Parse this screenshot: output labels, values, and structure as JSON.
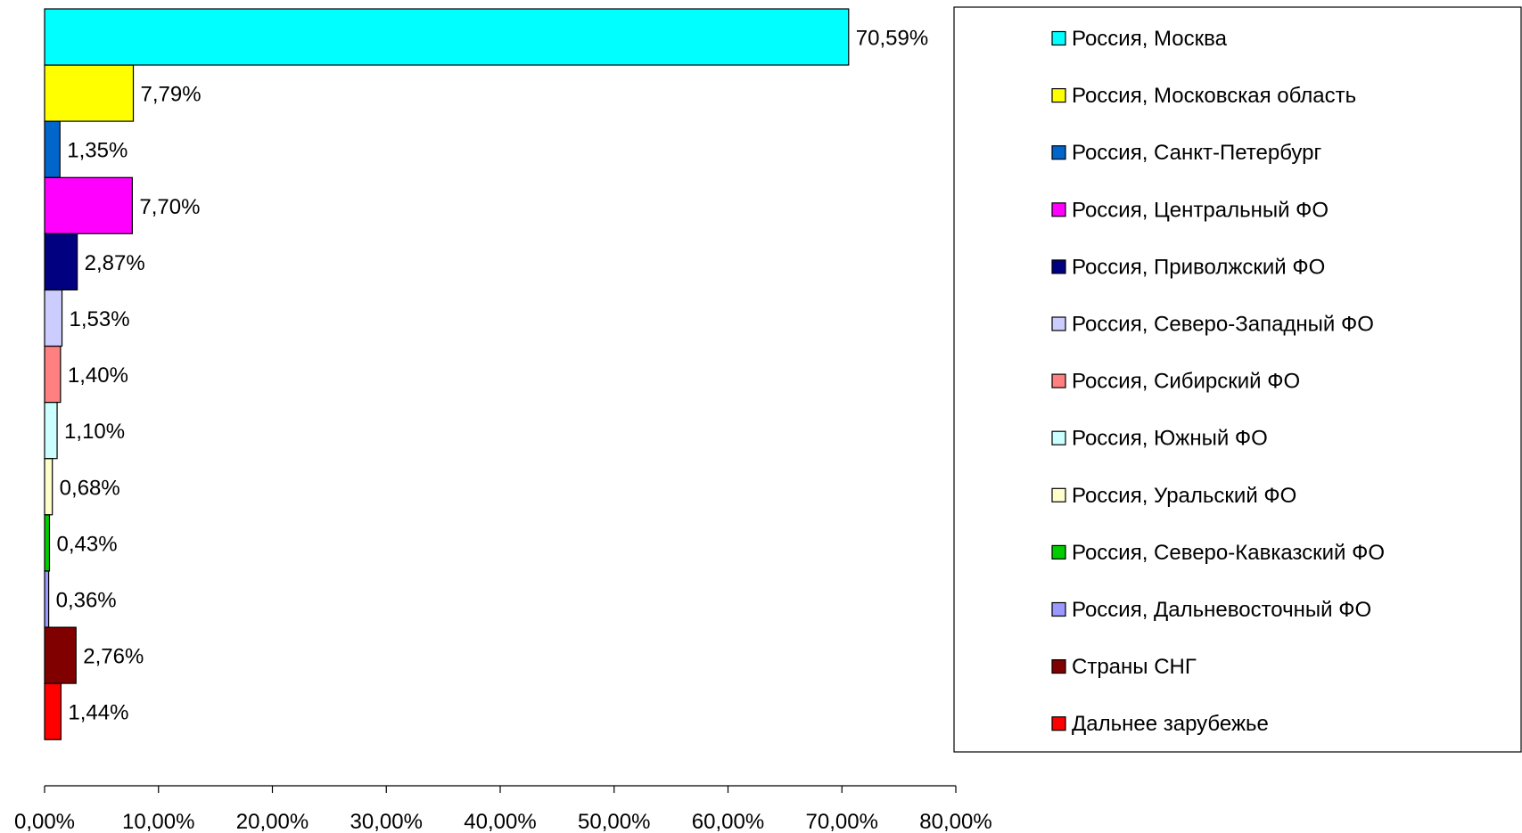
{
  "chart_data": {
    "type": "bar",
    "orientation": "horizontal",
    "title": "",
    "xlabel": "",
    "ylabel": "",
    "xlim": [
      0,
      80
    ],
    "x_ticks": [
      "0,00%",
      "10,00%",
      "20,00%",
      "30,00%",
      "40,00%",
      "50,00%",
      "60,00%",
      "70,00%",
      "80,00%"
    ],
    "grid": false,
    "legend_position": "right",
    "categories": [
      "Россия, Москва",
      "Россия, Московская область",
      "Россия, Санкт-Петербург",
      "Россия, Центральный ФО",
      "Россия, Приволжский ФО",
      "Россия, Северо-Западный ФО",
      "Россия, Сибирский ФО",
      "Россия, Южный ФО",
      "Россия, Уральский ФО",
      "Россия, Северо-Кавказский ФО",
      "Россия, Дальневосточный ФО",
      "Страны СНГ",
      "Дальнее зарубежье"
    ],
    "values": [
      70.59,
      7.79,
      1.35,
      7.7,
      2.87,
      1.53,
      1.4,
      1.1,
      0.68,
      0.43,
      0.36,
      2.76,
      1.44
    ],
    "value_labels": [
      "70,59%",
      "7,79%",
      "1,35%",
      "7,70%",
      "2,87%",
      "1,53%",
      "1,40%",
      "1,10%",
      "0,68%",
      "0,43%",
      "0,36%",
      "2,76%",
      "1,44%"
    ],
    "colors": [
      "#00FFFF",
      "#FFFF00",
      "#0066CC",
      "#FF00FF",
      "#000080",
      "#CCCCFF",
      "#FF8080",
      "#CCFFFF",
      "#FFFFCC",
      "#00CC00",
      "#9999FF",
      "#800000",
      "#FF0000"
    ]
  }
}
